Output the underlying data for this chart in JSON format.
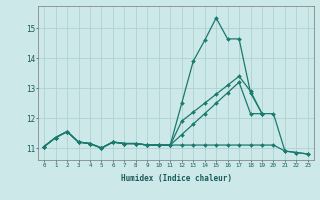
{
  "xlabel": "Humidex (Indice chaleur)",
  "x": [
    0,
    1,
    2,
    3,
    4,
    5,
    6,
    7,
    8,
    9,
    10,
    11,
    12,
    13,
    14,
    15,
    16,
    17,
    18,
    19,
    20,
    21,
    22,
    23
  ],
  "series1": [
    11.05,
    11.35,
    11.55,
    11.2,
    11.15,
    11.0,
    11.2,
    11.15,
    11.15,
    11.1,
    11.1,
    11.1,
    12.5,
    13.9,
    14.6,
    15.35,
    14.65,
    14.65,
    12.85,
    12.15,
    null,
    null,
    null,
    null
  ],
  "series2": [
    11.05,
    11.35,
    11.55,
    11.2,
    11.15,
    11.0,
    11.2,
    11.15,
    11.15,
    11.1,
    11.1,
    11.1,
    11.9,
    12.2,
    12.5,
    12.8,
    13.1,
    13.4,
    12.9,
    12.15,
    null,
    null,
    null,
    null
  ],
  "series3": [
    11.05,
    11.35,
    11.55,
    11.2,
    11.15,
    11.0,
    11.2,
    11.15,
    11.15,
    11.1,
    11.1,
    11.1,
    11.45,
    11.8,
    12.15,
    12.5,
    12.85,
    13.2,
    12.15,
    12.15,
    12.15,
    10.9,
    10.85,
    10.8
  ],
  "series4": [
    11.05,
    11.35,
    11.55,
    11.2,
    11.15,
    11.0,
    11.2,
    11.15,
    11.15,
    11.1,
    11.1,
    11.1,
    11.1,
    11.1,
    11.1,
    11.1,
    11.1,
    11.1,
    11.1,
    11.1,
    11.1,
    10.9,
    10.85,
    10.8
  ],
  "ylim": [
    10.6,
    15.75
  ],
  "yticks": [
    11,
    12,
    13,
    14,
    15
  ],
  "xticks": [
    0,
    1,
    2,
    3,
    4,
    5,
    6,
    7,
    8,
    9,
    10,
    11,
    12,
    13,
    14,
    15,
    16,
    17,
    18,
    19,
    20,
    21,
    22,
    23
  ],
  "line_color": "#1a7a6e",
  "bg_color": "#cce8e8",
  "grid_color": "#aacece",
  "marker": "D",
  "markersize": 2.0,
  "linewidth": 0.9
}
